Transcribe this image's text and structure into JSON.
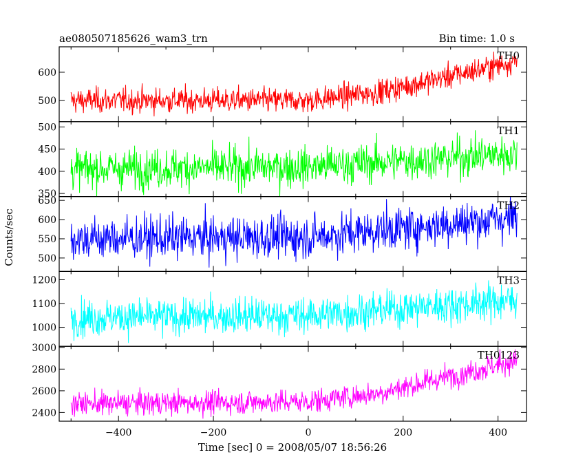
{
  "title_left": "ae080507185626_wam3_trn",
  "title_right": "Bin time: 1.0 s",
  "ylabel": "Counts/sec",
  "xlabel": "Time [sec] 0 = 2008/05/07 18:56:26",
  "chart_data": {
    "type": "line",
    "x_range": [
      -500,
      440
    ],
    "xlim": [
      -525,
      460
    ],
    "x_ticks": [
      -400,
      -200,
      0,
      200,
      400
    ],
    "x_tick_labels": [
      "−400",
      "−200",
      "0",
      "200",
      "400"
    ],
    "bin_time_s": 1.0,
    "grid": false,
    "panels": [
      {
        "name": "TH0",
        "color": "#ff0000",
        "ylim": [
          425,
          690
        ],
        "y_ticks": [
          500,
          600
        ],
        "y_tick_labels": [
          "500",
          "600"
        ],
        "trend_x": [
          -500,
          0,
          150,
          440
        ],
        "trend_y": [
          500,
          500,
          530,
          640
        ],
        "noise_sd": 22
      },
      {
        "name": "TH1",
        "color": "#00ff00",
        "ylim": [
          343,
          512
        ],
        "y_ticks": [
          350,
          400,
          450,
          500
        ],
        "y_tick_labels": [
          "350",
          "400",
          "450",
          "500"
        ],
        "trend_x": [
          -500,
          0,
          440
        ],
        "trend_y": [
          405,
          410,
          440
        ],
        "noise_sd": 22
      },
      {
        "name": "TH2",
        "color": "#0000ff",
        "ylim": [
          465,
          660
        ],
        "y_ticks": [
          500,
          550,
          600,
          650
        ],
        "y_tick_labels": [
          "500",
          "550",
          "600",
          "650"
        ],
        "trend_x": [
          -500,
          0,
          440
        ],
        "trend_y": [
          550,
          555,
          605
        ],
        "noise_sd": 28
      },
      {
        "name": "TH3",
        "color": "#00ffff",
        "ylim": [
          920,
          1235
        ],
        "y_ticks": [
          1000,
          1100,
          1200
        ],
        "y_tick_labels": [
          "1000",
          "1100",
          "1200"
        ],
        "trend_x": [
          -500,
          0,
          440
        ],
        "trend_y": [
          1040,
          1050,
          1115
        ],
        "noise_sd": 38
      },
      {
        "name": "TH0123",
        "color": "#ff00ff",
        "ylim": [
          2320,
          3010
        ],
        "y_ticks": [
          2400,
          2600,
          2800,
          3000
        ],
        "y_tick_labels": [
          "2400",
          "2600",
          "2800",
          "3000"
        ],
        "trend_x": [
          -500,
          0,
          150,
          440
        ],
        "trend_y": [
          2480,
          2500,
          2580,
          2880
        ],
        "noise_sd": 55
      }
    ]
  }
}
